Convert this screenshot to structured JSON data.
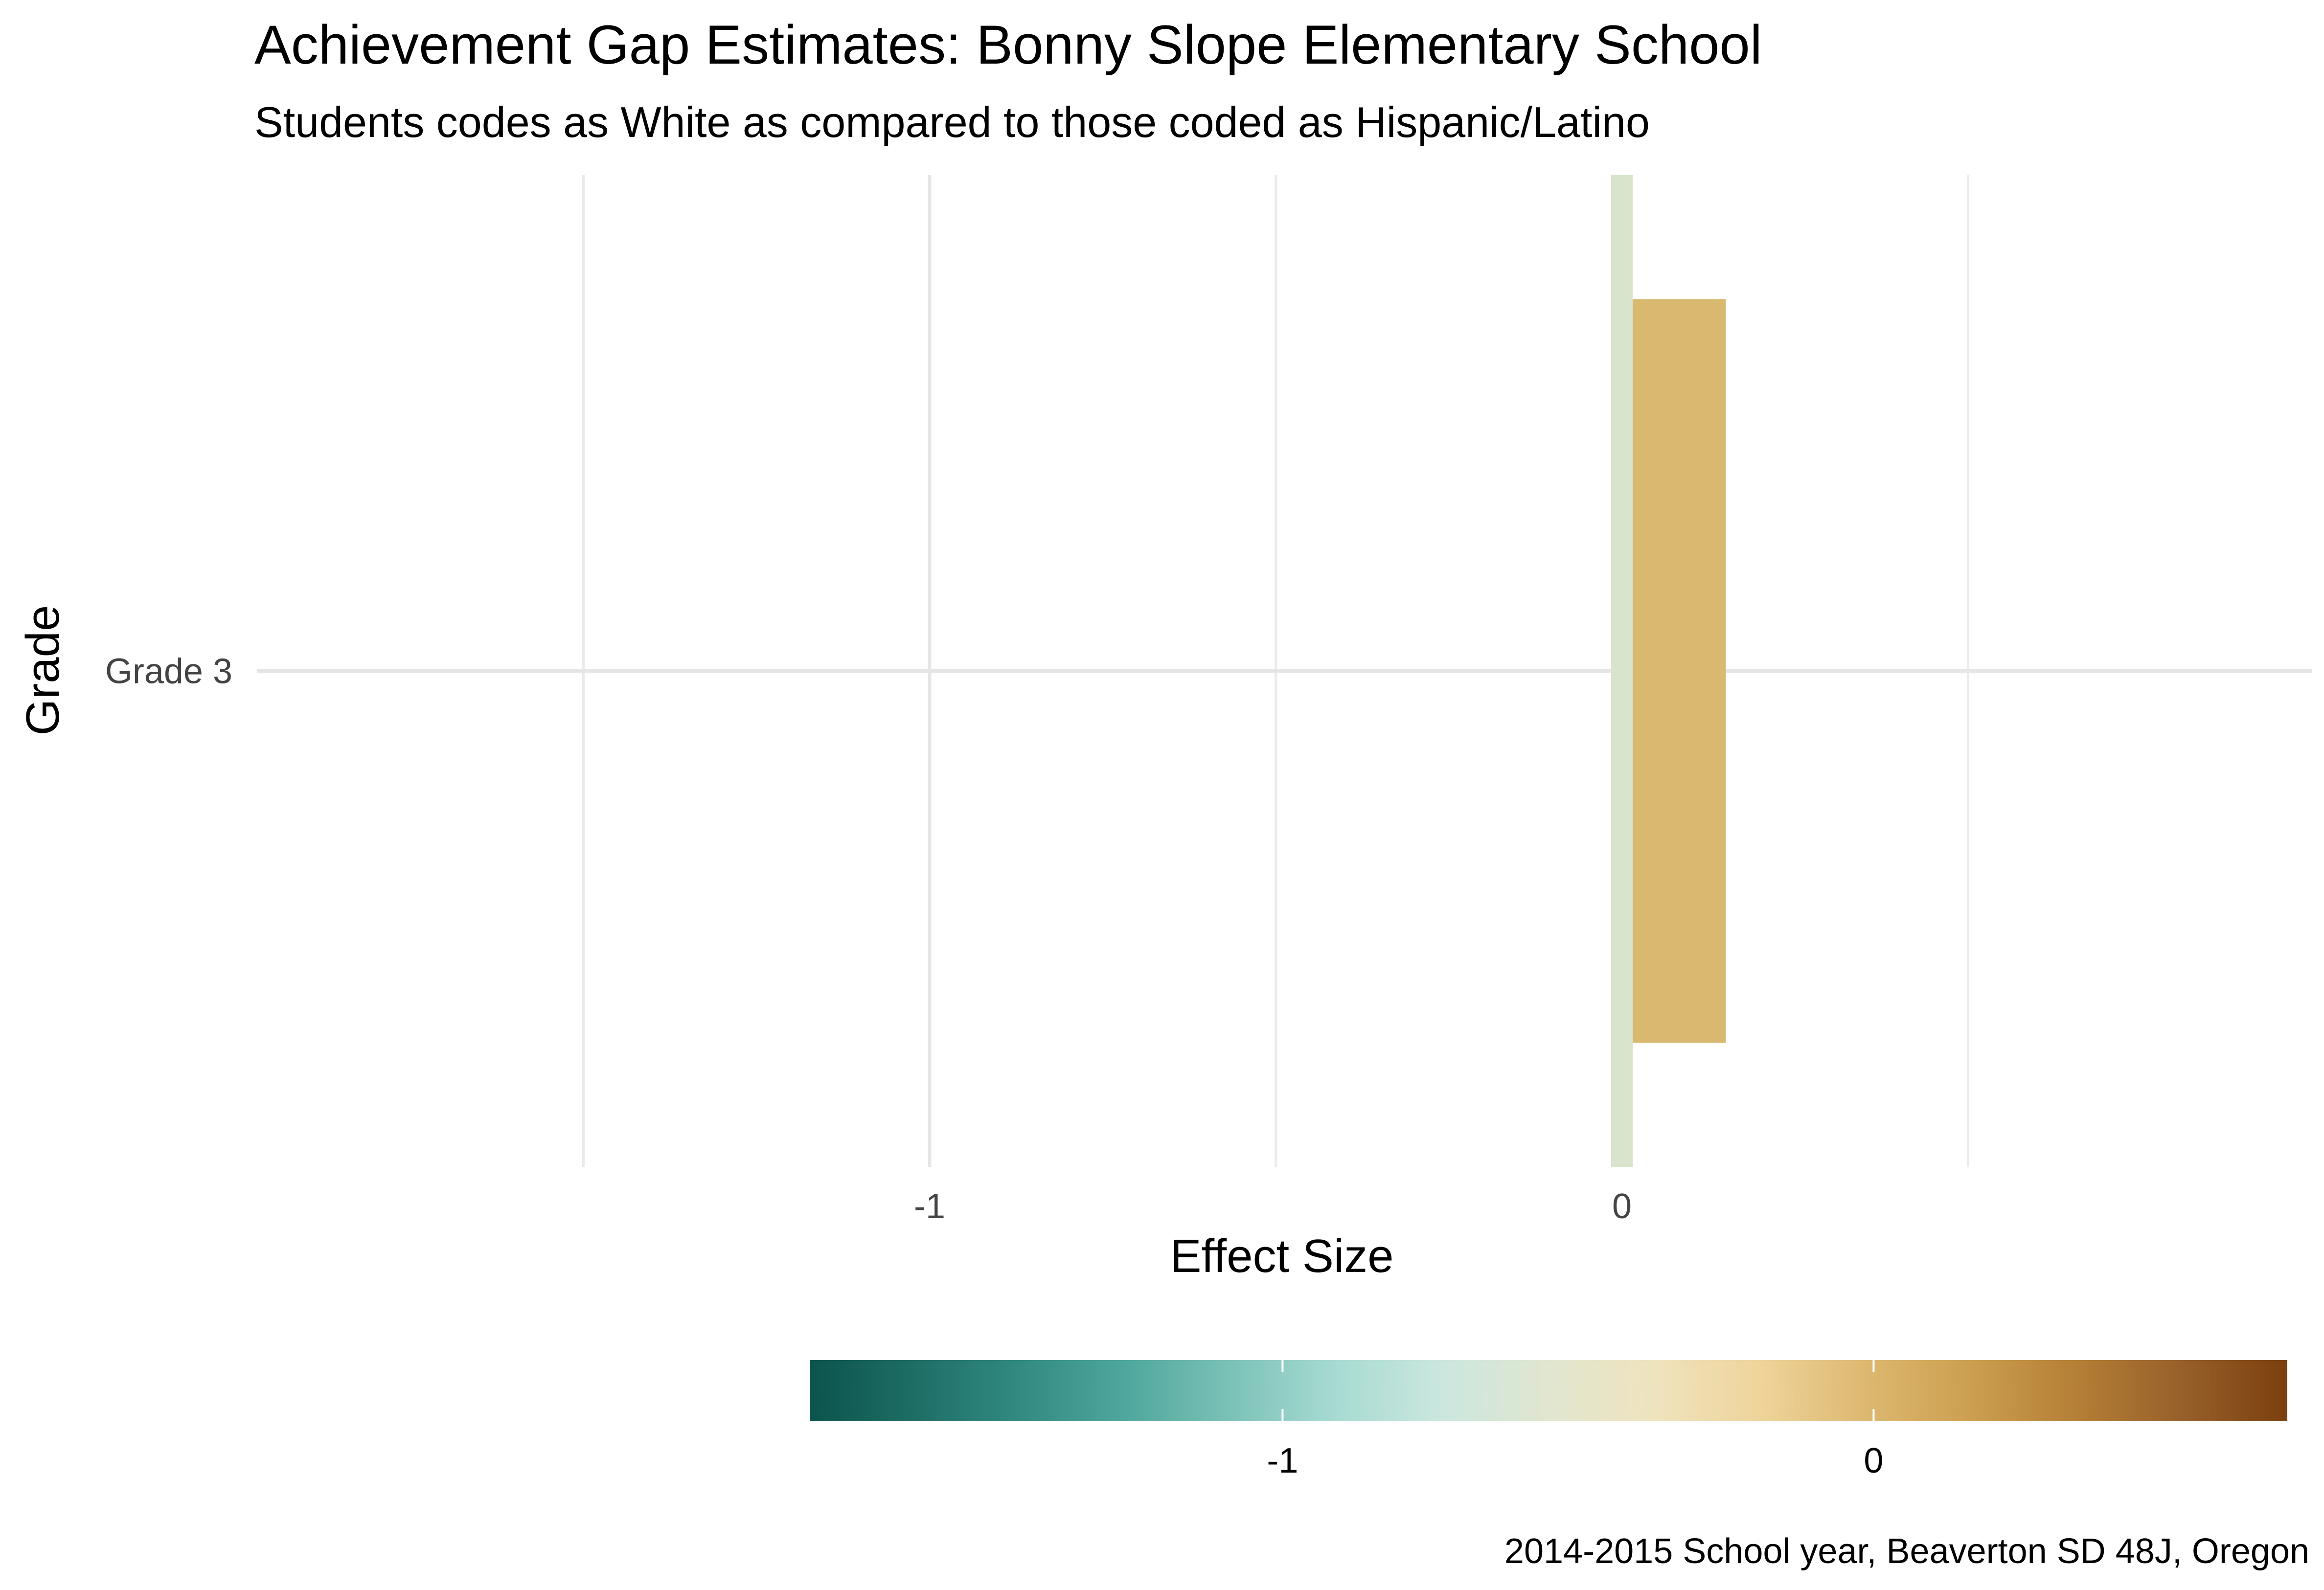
{
  "chart_data": {
    "type": "bar",
    "orientation": "horizontal",
    "title": "Achievement Gap Estimates: Bonny Slope Elementary School",
    "subtitle": "Students codes as White as compared to those coded as Hispanic/Latino",
    "xlabel": "Effect Size",
    "ylabel": "Grade",
    "categories": [
      "Grade 3"
    ],
    "values": [
      0.15
    ],
    "bar_colors": [
      "#D9B870"
    ],
    "reference_line": {
      "x": 0,
      "color": "#D8E5CC"
    },
    "xlim": [
      -1.5,
      1.0
    ],
    "x_ticks": [
      {
        "value": -1,
        "label": "-1"
      },
      {
        "value": 0,
        "label": "0"
      }
    ],
    "x_minor_grid": [
      -1.5,
      -0.5,
      0.5
    ],
    "grid": true,
    "legend": {
      "type": "colorbar",
      "placement": "bottom",
      "range": [
        -1.8,
        0.7
      ],
      "ticks": [
        {
          "value": -1,
          "label": "-1"
        },
        {
          "value": 0,
          "label": "0"
        }
      ],
      "colors": [
        "#0B544D",
        "#1E6E66",
        "#328A81",
        "#4FA79D",
        "#7CC2B8",
        "#A8DBD2",
        "#CBE7DE",
        "#E1E6CF",
        "#EFE3BE",
        "#EFD49B",
        "#DDB870",
        "#CC9F50",
        "#B47F36",
        "#97602A",
        "#7A3F0E"
      ]
    },
    "caption": "2014-2015 School year, Beaverton SD 48J, Oregon"
  }
}
